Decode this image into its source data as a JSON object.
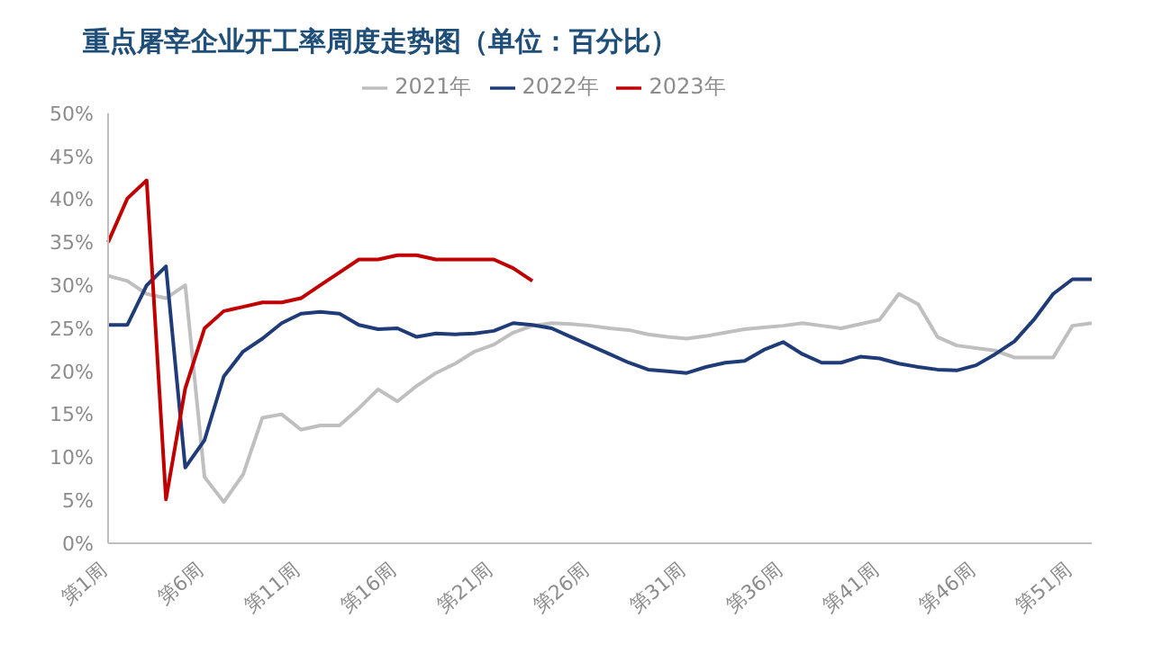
{
  "chart_data": {
    "type": "line",
    "title": "重点屠宰企业开工率周度走势图（单位：百分比）",
    "categories": [
      "第1周",
      null,
      null,
      null,
      null,
      "第6周",
      null,
      null,
      null,
      null,
      "第11周",
      null,
      null,
      null,
      null,
      "第16周",
      null,
      null,
      null,
      null,
      "第21周",
      null,
      null,
      null,
      null,
      "第26周",
      null,
      null,
      null,
      null,
      "第31周",
      null,
      null,
      null,
      null,
      "第36周",
      null,
      null,
      null,
      null,
      "第41周",
      null,
      null,
      null,
      null,
      "第46周",
      null,
      null,
      null,
      null,
      "第51周",
      null
    ],
    "series": [
      {
        "name": "2021年",
        "color": "#bfbfbf",
        "values": [
          31.1,
          30.5,
          29,
          28.5,
          30,
          7.7,
          4.8,
          8,
          14.6,
          15,
          13.2,
          13.7,
          13.7,
          15.7,
          17.9,
          16.5,
          18.3,
          19.8,
          20.9,
          22.3,
          23.1,
          24.5,
          25.3,
          25.6,
          25.5,
          25.3,
          25,
          24.8,
          24.3,
          24,
          23.8,
          24.1,
          24.5,
          24.9,
          25.1,
          25.3,
          25.6,
          25.3,
          25,
          25.5,
          26,
          29,
          27.8,
          24,
          23,
          22.7,
          22.4,
          21.6,
          21.6,
          21.6,
          25.3,
          25.6
        ]
      },
      {
        "name": "2022年",
        "color": "#1f3c78",
        "values": [
          25.4,
          25.4,
          30,
          32.2,
          8.8,
          12,
          19.4,
          22.3,
          23.8,
          25.6,
          26.7,
          26.9,
          26.7,
          25.4,
          24.9,
          25,
          24,
          24.4,
          24.3,
          24.4,
          24.7,
          25.6,
          25.4,
          25,
          24,
          23,
          22,
          21,
          20.2,
          20,
          19.8,
          20.5,
          21,
          21.2,
          22.5,
          23.4,
          22,
          21,
          21,
          21.7,
          21.5,
          20.9,
          20.5,
          20.2,
          20.1,
          20.7,
          22,
          23.5,
          26,
          29,
          30.7,
          30.7
        ]
      },
      {
        "name": "2023年",
        "color": "#c00000",
        "values": [
          35,
          40.1,
          42.2,
          5.1,
          18,
          25,
          27,
          27.5,
          28,
          28,
          28.5,
          30,
          31.5,
          33,
          33,
          33.5,
          33.5,
          33,
          33,
          33,
          33,
          32,
          30.5,
          null,
          null,
          null,
          null,
          null,
          null,
          null,
          null,
          null,
          null,
          null,
          null,
          null,
          null,
          null,
          null,
          null,
          null,
          null,
          null,
          null,
          null,
          null,
          null,
          null,
          null,
          null,
          null,
          null
        ]
      }
    ],
    "ylim": [
      0,
      50
    ],
    "yticks": [
      {
        "value": 0,
        "label": "0%"
      },
      {
        "value": 5,
        "label": "5%"
      },
      {
        "value": 10,
        "label": "10%"
      },
      {
        "value": 15,
        "label": "15%"
      },
      {
        "value": 20,
        "label": "20%"
      },
      {
        "value": 25,
        "label": "25%"
      },
      {
        "value": 30,
        "label": "30%"
      },
      {
        "value": 35,
        "label": "35%"
      },
      {
        "value": 40,
        "label": "40%"
      },
      {
        "value": 45,
        "label": "45%"
      },
      {
        "value": 50,
        "label": "50%"
      }
    ],
    "grid": false,
    "legend": "top",
    "marker": "none",
    "line_style": "solid"
  }
}
